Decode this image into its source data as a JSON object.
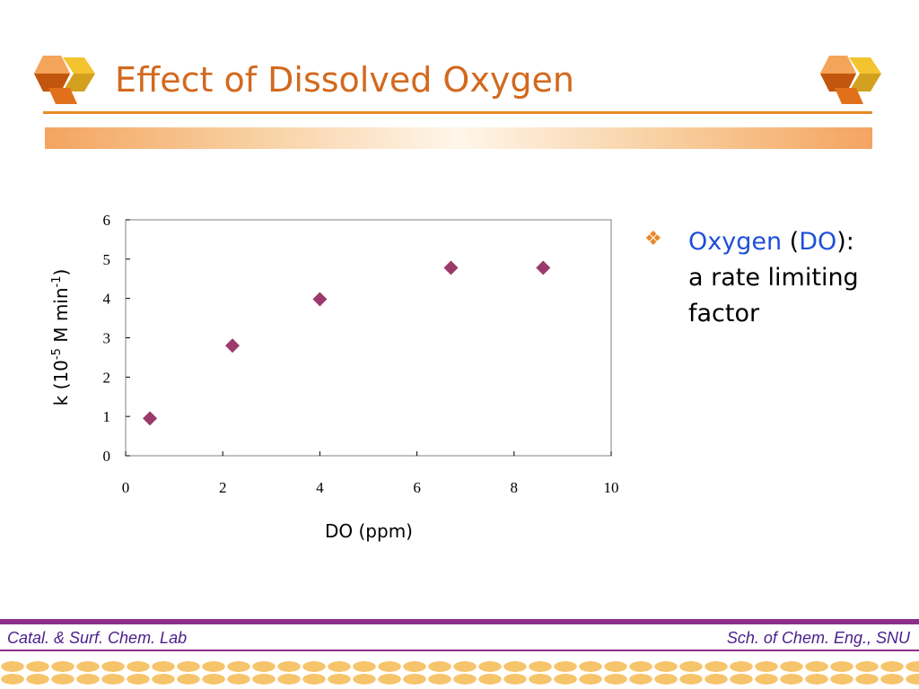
{
  "slide": {
    "title": "Effect of Dissolved Oxygen",
    "bullet": {
      "icon": "diamond-ornament-icon",
      "highlight_1": "Oxygen",
      "paren_open": " (",
      "highlight_2": "DO",
      "rest_1": "):",
      "line_2": "a rate limiting",
      "line_3": "factor"
    },
    "footer": {
      "left": "Catal. & Surf. Chem. Lab",
      "right": "Sch. of Chem. Eng., SNU"
    }
  },
  "colors": {
    "title": "#D2691E",
    "accent": "#E9892A",
    "highlight": "#1E4FD8",
    "marker": "#9B3A6B",
    "footer": "#8B2F8B"
  },
  "chart_data": {
    "type": "scatter",
    "title": "",
    "xlabel": "DO (ppm)",
    "ylabel_parts": [
      "k (10",
      "-5",
      " M min",
      "-1",
      ")"
    ],
    "xlim": [
      0,
      10
    ],
    "ylim": [
      0,
      6
    ],
    "x_ticks": [
      0,
      2,
      4,
      6,
      8,
      10
    ],
    "y_ticks": [
      0,
      1,
      2,
      3,
      4,
      5,
      6
    ],
    "grid": false,
    "marker": "diamond",
    "points": [
      {
        "x": 0.5,
        "y": 0.95
      },
      {
        "x": 2.2,
        "y": 2.8
      },
      {
        "x": 4.0,
        "y": 3.98
      },
      {
        "x": 6.7,
        "y": 4.78
      },
      {
        "x": 8.6,
        "y": 4.78
      }
    ]
  }
}
